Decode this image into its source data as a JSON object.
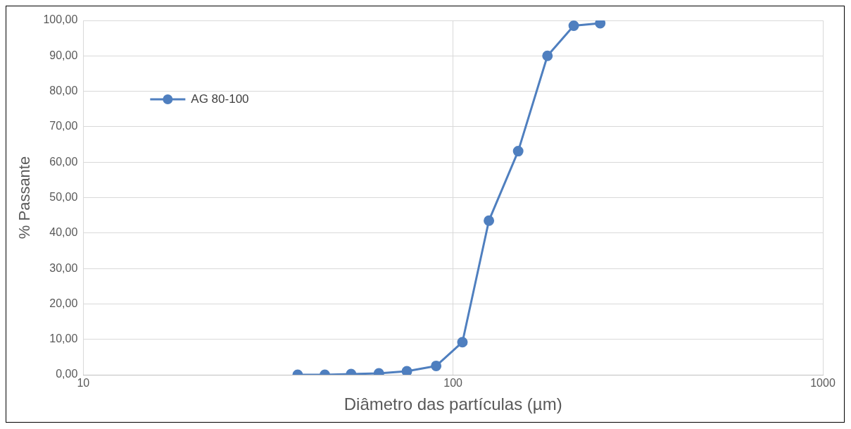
{
  "chart_data": {
    "type": "line",
    "xlabel": "Diâmetro das partículas (µm)",
    "ylabel": "% Passante",
    "log": "x",
    "xlim": [
      10,
      1000
    ],
    "xticks": [
      10,
      100,
      1000
    ],
    "ylim": [
      0,
      100
    ],
    "yticks": [
      {
        "value": 0,
        "label": "0,00"
      },
      {
        "value": 10,
        "label": "10,00"
      },
      {
        "value": 20,
        "label": "20,00"
      },
      {
        "value": 30,
        "label": "30,00"
      },
      {
        "value": 40,
        "label": "40,00"
      },
      {
        "value": 50,
        "label": "50,00"
      },
      {
        "value": 60,
        "label": "60,00"
      },
      {
        "value": 70,
        "label": "70,00"
      },
      {
        "value": 80,
        "label": "80,00"
      },
      {
        "value": 90,
        "label": "90,00"
      },
      {
        "value": 100,
        "label": "100,00"
      }
    ],
    "grid": true,
    "legend": "top left",
    "marker": "circle",
    "line_style": "solid",
    "series": [
      {
        "name": "AG 80-100",
        "color": "#4f7fbf",
        "x": [
          38,
          45,
          53,
          63,
          75,
          90,
          106,
          125,
          150,
          180,
          212,
          250
        ],
        "values": [
          0,
          0,
          0.2,
          0.4,
          1.0,
          2.5,
          9.2,
          43.5,
          63.1,
          90.0,
          98.5,
          99.2
        ]
      }
    ]
  }
}
